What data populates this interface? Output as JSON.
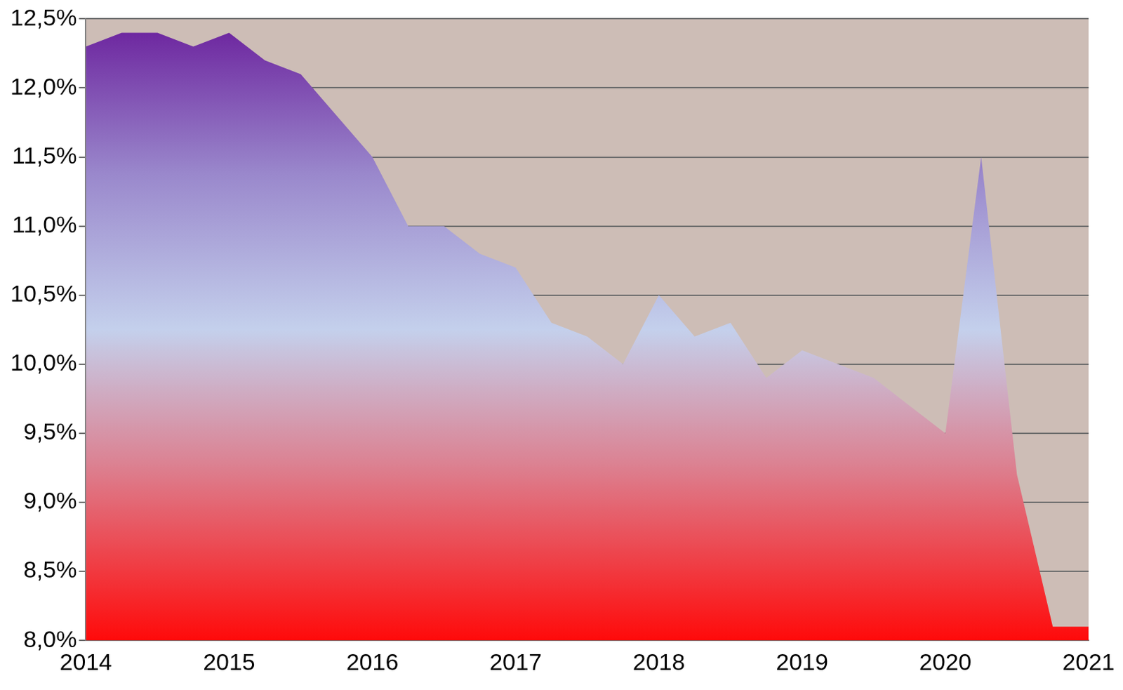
{
  "chart_data": {
    "type": "area",
    "x": [
      2014,
      2014.25,
      2014.5,
      2014.75,
      2015,
      2015.25,
      2015.5,
      2015.75,
      2016,
      2016.25,
      2016.5,
      2016.75,
      2017,
      2017.25,
      2017.5,
      2017.75,
      2018,
      2018.25,
      2018.5,
      2018.75,
      2019,
      2019.25,
      2019.5,
      2019.75,
      2020,
      2020.25,
      2020.5,
      2020.75,
      2021
    ],
    "values": [
      12.3,
      12.4,
      12.4,
      12.3,
      12.4,
      12.2,
      12.1,
      11.8,
      11.5,
      11.0,
      11.0,
      10.8,
      10.7,
      10.3,
      10.2,
      10.0,
      10.5,
      10.2,
      10.3,
      9.9,
      10.1,
      10.0,
      9.9,
      9.7,
      9.5,
      11.5,
      9.2,
      8.1,
      8.1
    ],
    "xlim": [
      2014,
      2021
    ],
    "xticks": [
      2014,
      2015,
      2016,
      2017,
      2018,
      2019,
      2020,
      2021
    ],
    "ylim": [
      8.0,
      12.5
    ],
    "yticks": [
      {
        "value": 8.0,
        "label": "8,0%"
      },
      {
        "value": 8.5,
        "label": "8,5%"
      },
      {
        "value": 9.0,
        "label": "9,0%"
      },
      {
        "value": 9.5,
        "label": "9,5%"
      },
      {
        "value": 10.0,
        "label": "10,0%"
      },
      {
        "value": 10.5,
        "label": "10,5%"
      },
      {
        "value": 11.0,
        "label": "11,0%"
      },
      {
        "value": 11.5,
        "label": "11,5%"
      },
      {
        "value": 12.0,
        "label": "12,0%"
      },
      {
        "value": 12.5,
        "label": "12,5%"
      }
    ],
    "grid": true
  }
}
